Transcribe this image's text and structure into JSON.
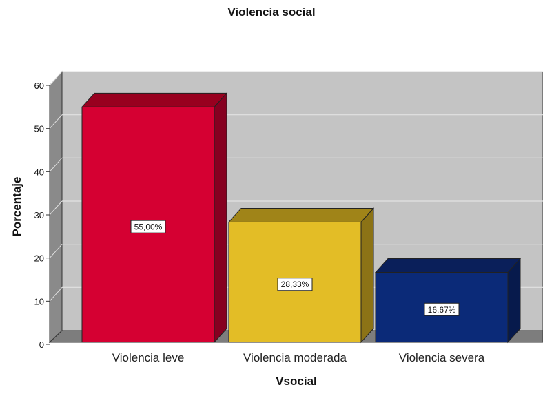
{
  "chart_data": {
    "type": "bar",
    "title": "Violencia social",
    "xlabel": "Vsocial",
    "ylabel": "Porcentaje",
    "categories": [
      "Violencia leve",
      "Violencia moderada",
      "Violencia severa"
    ],
    "values": [
      55.0,
      28.33,
      16.67
    ],
    "data_labels": [
      "55,00%",
      "28,33%",
      "16,67%"
    ],
    "ylim": [
      0,
      60
    ],
    "yticks": [
      "0",
      "10",
      "20",
      "30",
      "40",
      "50",
      "60"
    ],
    "grid": true,
    "style": "3d",
    "colors": {
      "bar_fronts": [
        "#d50032",
        "#e3bd26",
        "#0b2a78"
      ],
      "bar_sides": [
        "#860020",
        "#8c7316",
        "#071a4c"
      ],
      "bar_tops": [
        "#98001f",
        "#a08418",
        "#0a1f5a"
      ],
      "plot_back": "#c4c4c4",
      "plot_side": "#8a8a8a",
      "plot_floor": "#7d7d7d",
      "gridline": "#e2e2e2"
    }
  }
}
